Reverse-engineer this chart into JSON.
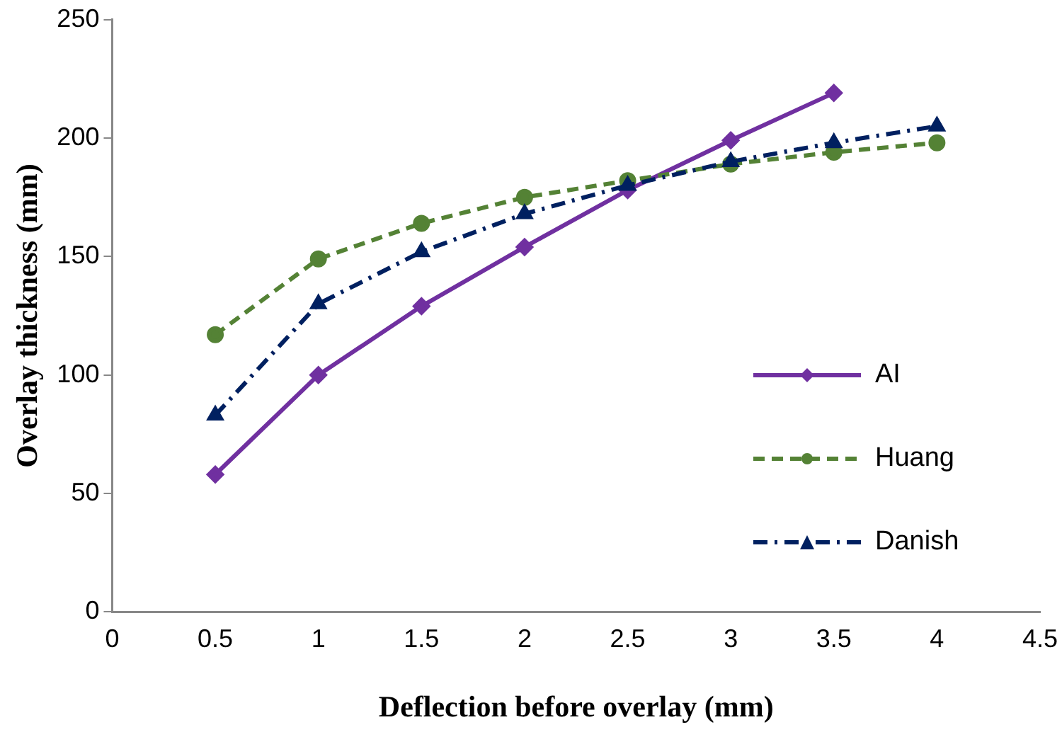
{
  "chart_data": {
    "type": "line",
    "xlabel": "Deflection before overlay (mm)",
    "ylabel": "Overlay thickness (mm)",
    "x": [
      0.5,
      1,
      1.5,
      2,
      2.5,
      3,
      3.5,
      4
    ],
    "series": [
      {
        "name": "AI",
        "color": "#7030a0",
        "marker": "diamond",
        "line_style": "solid",
        "values": [
          58,
          100,
          129,
          154,
          178,
          199,
          219,
          null
        ]
      },
      {
        "name": "Huang",
        "color": "#548235",
        "marker": "circle",
        "line_style": "dashed",
        "values": [
          117,
          149,
          164,
          175,
          182,
          189,
          194,
          198
        ]
      },
      {
        "name": "Danish",
        "color": "#002060",
        "marker": "triangle",
        "line_style": "dotted",
        "values": [
          83,
          130,
          152,
          168,
          180,
          190,
          198,
          205
        ]
      }
    ],
    "xlim": [
      0,
      4.5
    ],
    "xticks": [
      0,
      0.5,
      1,
      1.5,
      2,
      2.5,
      3,
      3.5,
      4,
      4.5
    ],
    "ylim": [
      0,
      250
    ],
    "yticks": [
      0,
      50,
      100,
      150,
      200,
      250
    ],
    "grid": false,
    "legend": "right"
  }
}
